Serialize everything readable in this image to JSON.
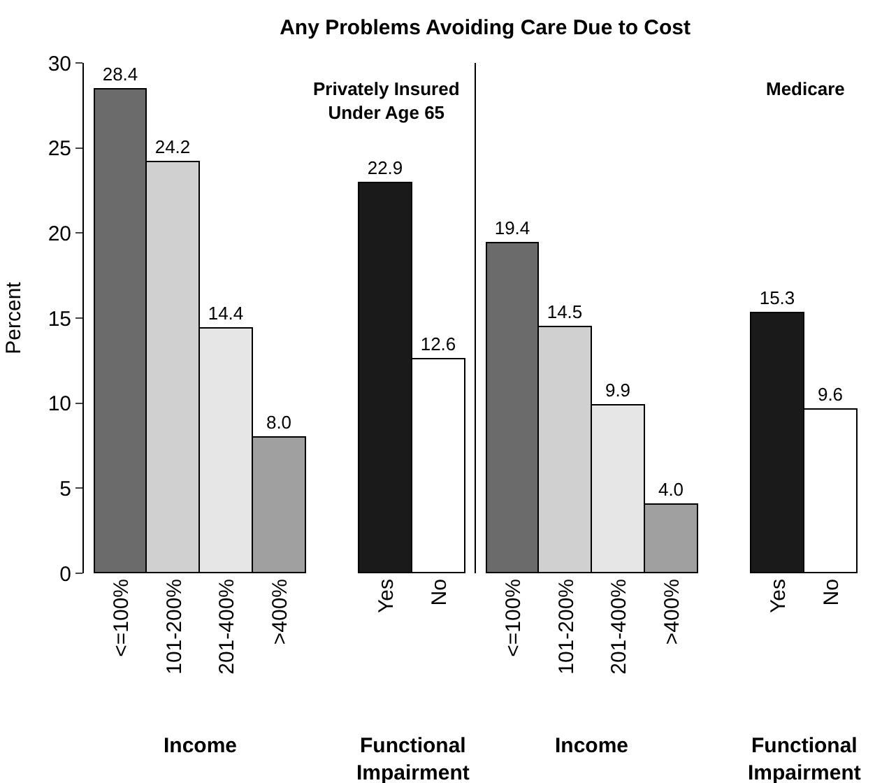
{
  "chart_data": [
    {
      "type": "bar",
      "title": "Any Problems Avoiding Care Due to Cost",
      "ylabel": "Percent",
      "categories": [
        "<=100%",
        "101-200%",
        "201-400%",
        ">400%",
        null,
        "Yes",
        "No"
      ],
      "values": [
        28.4,
        24.2,
        14.4,
        8.0,
        null,
        22.9,
        12.6
      ],
      "colors": [
        "#6b6b6b",
        "#d0d0d0",
        "#e6e6e6",
        "#a0a0a0",
        "#ffffff",
        "#1a1a1a",
        "#ffffff"
      ],
      "value_labels": [
        "28.4",
        "24.2",
        "14.4",
        "8.0",
        null,
        "22.9",
        "12.6"
      ],
      "ylim": [
        0,
        30
      ],
      "yticks": [
        0,
        5,
        10,
        15,
        20,
        25,
        30
      ],
      "annotations": [
        "Privately Insured\nUnder Age 65",
        "Income",
        "Functional\nImpairment"
      ]
    },
    {
      "type": "bar",
      "categories": [
        "<=100%",
        "101-200%",
        "201-400%",
        ">400%",
        null,
        "Yes",
        "No"
      ],
      "values": [
        19.4,
        14.5,
        9.9,
        4.0,
        null,
        15.3,
        9.6
      ],
      "colors": [
        "#6b6b6b",
        "#d0d0d0",
        "#e6e6e6",
        "#a0a0a0",
        "#ffffff",
        "#1a1a1a",
        "#ffffff"
      ],
      "value_labels": [
        "19.4",
        "14.5",
        "9.9",
        "4.0",
        null,
        "15.3",
        "9.6"
      ],
      "ylim": [
        0,
        30
      ],
      "yticks": [
        0,
        5,
        10,
        15,
        20,
        25,
        30
      ],
      "tick_labels": "x",
      "annotations": [
        "Medicare",
        "Income",
        "Functional\nImpairment"
      ]
    }
  ]
}
